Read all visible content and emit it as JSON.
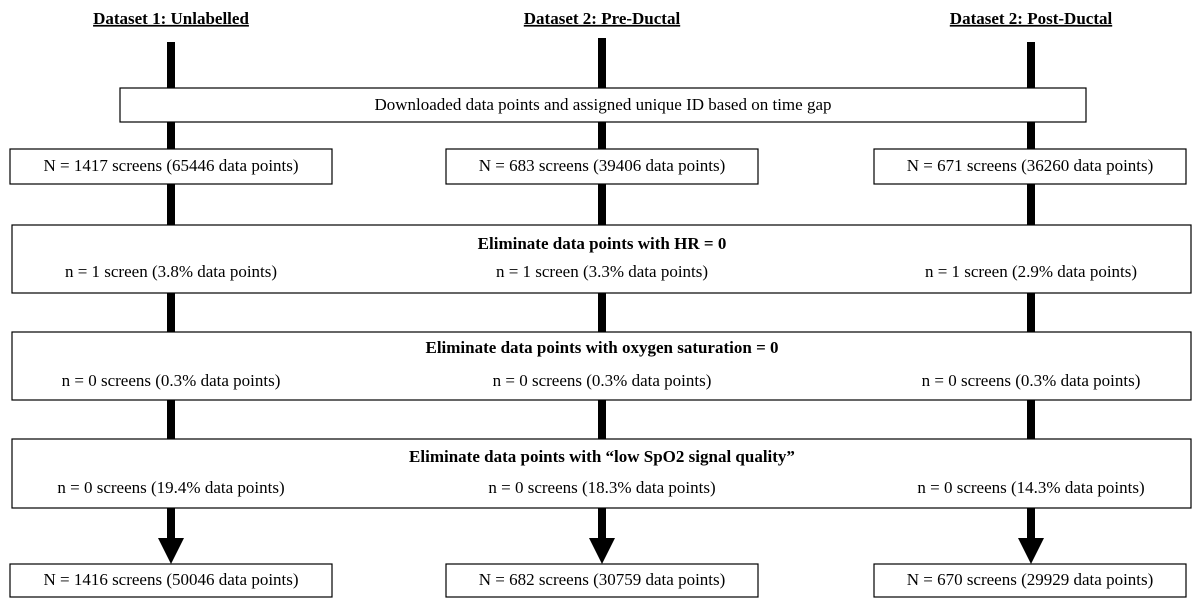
{
  "columns": [
    {
      "header": "Dataset 1: Unlabelled",
      "initial": "N = 1417 screens (65446 data points)",
      "final": "N = 1416 screens (50046 data points)"
    },
    {
      "header": "Dataset 2: Pre-Ductal",
      "initial": "N = 683 screens (39406 data points)",
      "final": "N = 682 screens (30759 data points)"
    },
    {
      "header": "Dataset 2: Post-Ductal",
      "initial": "N = 671 screens (36260 data points)",
      "final": "N = 670 screens (29929 data points)"
    }
  ],
  "download": "Downloaded data points and assigned unique ID based on time gap",
  "steps": [
    {
      "title": "Eliminate data points with HR = 0",
      "counts": [
        "n = 1 screen (3.8% data points)",
        "n = 1 screen (3.3% data points)",
        "n = 1 screen (2.9% data points)"
      ]
    },
    {
      "title": "Eliminate data points with oxygen saturation = 0",
      "counts": [
        "n = 0 screens (0.3% data points)",
        "n = 0 screens (0.3% data points)",
        "n = 0 screens (0.3% data points)"
      ]
    },
    {
      "title": "Eliminate data points with “low SpO2 signal quality”",
      "counts": [
        "n = 0 screens (19.4% data points)",
        "n = 0 screens (18.3% data points)",
        "n = 0 screens (14.3% data points)"
      ]
    }
  ]
}
